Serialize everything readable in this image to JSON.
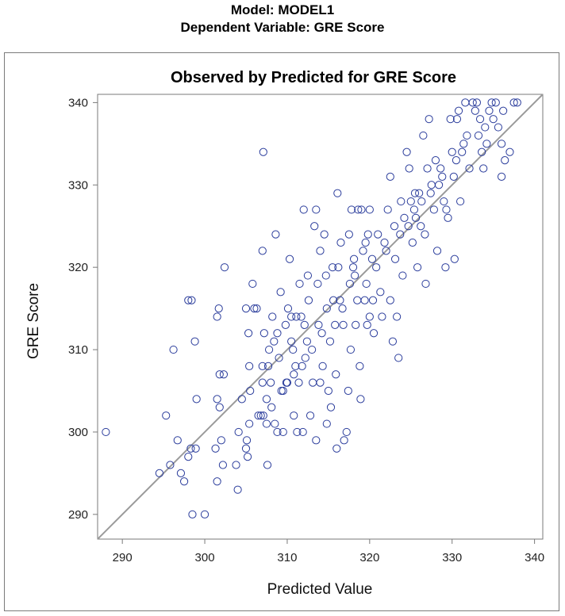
{
  "header": {
    "model": "Model: MODEL1",
    "dependent": "Dependent Variable: GRE Score"
  },
  "colors": {
    "marker": "#2b3d9c",
    "reference_line": "#9a9a9a",
    "axis": "#7a7a7a"
  },
  "chart_data": {
    "type": "scatter",
    "title": "Observed by Predicted for GRE Score",
    "xlabel": "Predicted Value",
    "ylabel": "GRE Score",
    "xlim": [
      287,
      341
    ],
    "ylim": [
      287,
      341
    ],
    "xticks": [
      290,
      300,
      310,
      320,
      330,
      340
    ],
    "yticks": [
      290,
      300,
      310,
      320,
      330,
      340
    ],
    "reference_line": "y = x",
    "points": [
      [
        288,
        300
      ],
      [
        294.5,
        295
      ],
      [
        295.3,
        302
      ],
      [
        295.8,
        296
      ],
      [
        296.2,
        310
      ],
      [
        296.7,
        299
      ],
      [
        297.1,
        295
      ],
      [
        297.5,
        294
      ],
      [
        298,
        316
      ],
      [
        298.4,
        316
      ],
      [
        298.8,
        311
      ],
      [
        298.5,
        290
      ],
      [
        300,
        290
      ],
      [
        299,
        304
      ],
      [
        298.3,
        298
      ],
      [
        298.9,
        298
      ],
      [
        298,
        297
      ],
      [
        301.5,
        314
      ],
      [
        301.7,
        315
      ],
      [
        301.8,
        307
      ],
      [
        301.5,
        304
      ],
      [
        301.8,
        303
      ],
      [
        301.3,
        298
      ],
      [
        301.5,
        294
      ],
      [
        302,
        299
      ],
      [
        302.3,
        307
      ],
      [
        302.2,
        296
      ],
      [
        302.4,
        320
      ],
      [
        303.8,
        296
      ],
      [
        304,
        293
      ],
      [
        304.1,
        300
      ],
      [
        304.5,
        304
      ],
      [
        305,
        315
      ],
      [
        305.1,
        299
      ],
      [
        305,
        298
      ],
      [
        305.3,
        312
      ],
      [
        305.4,
        308
      ],
      [
        305.2,
        297
      ],
      [
        305.4,
        301
      ],
      [
        305.5,
        305
      ],
      [
        305.8,
        318
      ],
      [
        306,
        315
      ],
      [
        306.3,
        315
      ],
      [
        306.5,
        302
      ],
      [
        306.8,
        302
      ],
      [
        307.0,
        322
      ],
      [
        307.1,
        334
      ],
      [
        307.1,
        302
      ],
      [
        307,
        306
      ],
      [
        307,
        308
      ],
      [
        307.2,
        312
      ],
      [
        307.5,
        301
      ],
      [
        307.6,
        296
      ],
      [
        307.5,
        304
      ],
      [
        307.8,
        310
      ],
      [
        307.7,
        308
      ],
      [
        308,
        306
      ],
      [
        308.1,
        303
      ],
      [
        308.2,
        314
      ],
      [
        308.4,
        311
      ],
      [
        308.5,
        301
      ],
      [
        308.6,
        324
      ],
      [
        308.8,
        300
      ],
      [
        308.8,
        312
      ],
      [
        309,
        309
      ],
      [
        309.2,
        317
      ],
      [
        309.3,
        305
      ],
      [
        309.5,
        305
      ],
      [
        309.5,
        300
      ],
      [
        309.8,
        313
      ],
      [
        309.9,
        306
      ],
      [
        310,
        306
      ],
      [
        310.1,
        315
      ],
      [
        310.3,
        321
      ],
      [
        310.5,
        314
      ],
      [
        310.5,
        311
      ],
      [
        310.7,
        310
      ],
      [
        310.8,
        307
      ],
      [
        310.8,
        302
      ],
      [
        311.1,
        314
      ],
      [
        311,
        308
      ],
      [
        311.2,
        300
      ],
      [
        311.4,
        306
      ],
      [
        311.5,
        318
      ],
      [
        311.7,
        314
      ],
      [
        311.8,
        308
      ],
      [
        311.9,
        300
      ],
      [
        312,
        327
      ],
      [
        312.1,
        313
      ],
      [
        312.2,
        309
      ],
      [
        312.4,
        311
      ],
      [
        312.5,
        319
      ],
      [
        312.6,
        316
      ],
      [
        312.8,
        302
      ],
      [
        313,
        310
      ],
      [
        313.1,
        306
      ],
      [
        313.3,
        325
      ],
      [
        313.5,
        327
      ],
      [
        313.5,
        299
      ],
      [
        313.7,
        318
      ],
      [
        313.8,
        313
      ],
      [
        314,
        322
      ],
      [
        314,
        306
      ],
      [
        314.2,
        312
      ],
      [
        314.3,
        308
      ],
      [
        314.5,
        324
      ],
      [
        314.7,
        319
      ],
      [
        314.8,
        315
      ],
      [
        314.8,
        301
      ],
      [
        315,
        305
      ],
      [
        315.2,
        311
      ],
      [
        315.3,
        303
      ],
      [
        315.5,
        320
      ],
      [
        315.6,
        316
      ],
      [
        315.8,
        313
      ],
      [
        315.9,
        307
      ],
      [
        316,
        298
      ],
      [
        316.1,
        329
      ],
      [
        316.2,
        320
      ],
      [
        316.4,
        316
      ],
      [
        316.5,
        323
      ],
      [
        316.7,
        315
      ],
      [
        316.8,
        313
      ],
      [
        316.9,
        299
      ],
      [
        317.2,
        300
      ],
      [
        317.4,
        305
      ],
      [
        317.5,
        324
      ],
      [
        317.6,
        318
      ],
      [
        317.7,
        310
      ],
      [
        317.8,
        327
      ],
      [
        318,
        320
      ],
      [
        318.1,
        321
      ],
      [
        318.2,
        319
      ],
      [
        318.3,
        313
      ],
      [
        318.5,
        316
      ],
      [
        318.6,
        327
      ],
      [
        318.8,
        308
      ],
      [
        318.9,
        304
      ],
      [
        319,
        327
      ],
      [
        319.2,
        322
      ],
      [
        319.4,
        316
      ],
      [
        319.5,
        323
      ],
      [
        319.6,
        318
      ],
      [
        319.7,
        313
      ],
      [
        319.8,
        324
      ],
      [
        320,
        314
      ],
      [
        320,
        327
      ],
      [
        320.3,
        321
      ],
      [
        320.4,
        316
      ],
      [
        320.5,
        312
      ],
      [
        320.8,
        320
      ],
      [
        321,
        324
      ],
      [
        321.3,
        317
      ],
      [
        321.5,
        314
      ],
      [
        321.8,
        323
      ],
      [
        322,
        322
      ],
      [
        322.2,
        327
      ],
      [
        322.5,
        316
      ],
      [
        322.5,
        331
      ],
      [
        322.8,
        311
      ],
      [
        323,
        325
      ],
      [
        323.1,
        321
      ],
      [
        323.3,
        314
      ],
      [
        323.5,
        309
      ],
      [
        323.7,
        324
      ],
      [
        323.8,
        328
      ],
      [
        324,
        319
      ],
      [
        324.2,
        326
      ],
      [
        324.5,
        334
      ],
      [
        324.7,
        325
      ],
      [
        324.8,
        332
      ],
      [
        325,
        328
      ],
      [
        325.2,
        323
      ],
      [
        325.4,
        327
      ],
      [
        325.5,
        329
      ],
      [
        325.6,
        326
      ],
      [
        325.8,
        320
      ],
      [
        326,
        329
      ],
      [
        326.2,
        325
      ],
      [
        326.3,
        328
      ],
      [
        326.5,
        336
      ],
      [
        326.7,
        324
      ],
      [
        326.8,
        318
      ],
      [
        327,
        332
      ],
      [
        327.2,
        338
      ],
      [
        327.4,
        329
      ],
      [
        327.5,
        330
      ],
      [
        327.8,
        327
      ],
      [
        328,
        333
      ],
      [
        328.2,
        322
      ],
      [
        328.4,
        330
      ],
      [
        328.6,
        332
      ],
      [
        328.8,
        331
      ],
      [
        329,
        328
      ],
      [
        329.2,
        320
      ],
      [
        329.3,
        327
      ],
      [
        329.5,
        326
      ],
      [
        329.8,
        338
      ],
      [
        330,
        334
      ],
      [
        330.2,
        331
      ],
      [
        330.3,
        321
      ],
      [
        330.5,
        333
      ],
      [
        330.6,
        338
      ],
      [
        330.8,
        339
      ],
      [
        331,
        328
      ],
      [
        331.2,
        334
      ],
      [
        331.4,
        335
      ],
      [
        331.6,
        340
      ],
      [
        331.8,
        336
      ],
      [
        332.1,
        332
      ],
      [
        332.5,
        340
      ],
      [
        332.8,
        339
      ],
      [
        333,
        340
      ],
      [
        333.2,
        336
      ],
      [
        333.4,
        338
      ],
      [
        333.6,
        334
      ],
      [
        333.8,
        332
      ],
      [
        334,
        337
      ],
      [
        334.2,
        335
      ],
      [
        334.5,
        339
      ],
      [
        334.8,
        340
      ],
      [
        335,
        338
      ],
      [
        335.3,
        340
      ],
      [
        335.6,
        337
      ],
      [
        336,
        335
      ],
      [
        336,
        331
      ],
      [
        336.2,
        339
      ],
      [
        336.4,
        333
      ],
      [
        337,
        334
      ],
      [
        337.5,
        340
      ],
      [
        337.9,
        340
      ]
    ]
  }
}
